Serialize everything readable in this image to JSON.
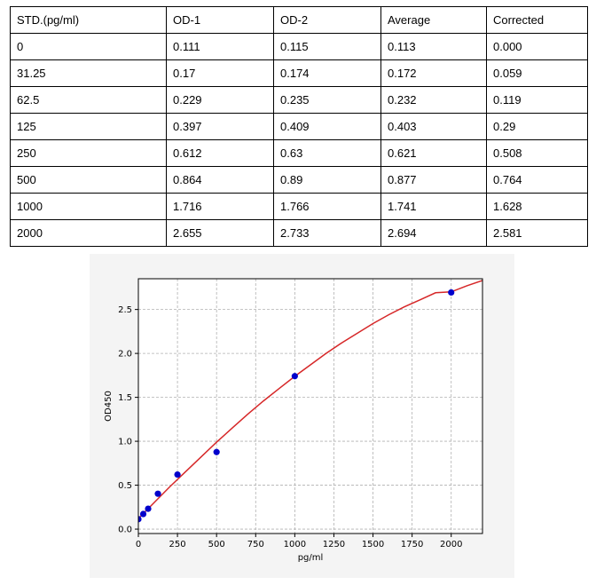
{
  "table": {
    "headers": [
      "STD.(pg/ml)",
      "OD-1",
      "OD-2",
      "Average",
      "Corrected"
    ],
    "rows": [
      [
        "0",
        "0.111",
        "0.115",
        "0.113",
        "0.000"
      ],
      [
        "31.25",
        "0.17",
        "0.174",
        "0.172",
        "0.059"
      ],
      [
        "62.5",
        "0.229",
        "0.235",
        "0.232",
        "0.119"
      ],
      [
        "125",
        "0.397",
        "0.409",
        "0.403",
        "0.29"
      ],
      [
        "250",
        "0.612",
        "0.63",
        "0.621",
        "0.508"
      ],
      [
        "500",
        "0.864",
        "0.89",
        "0.877",
        "0.764"
      ],
      [
        "1000",
        "1.716",
        "1.766",
        "1.741",
        "1.628"
      ],
      [
        "2000",
        "2.655",
        "2.733",
        "2.694",
        "2.581"
      ]
    ]
  },
  "chart_data": {
    "type": "scatter",
    "xlabel": "pg/ml",
    "ylabel": "OD450",
    "xlim": [
      0,
      2200
    ],
    "ylim": [
      -0.05,
      2.85
    ],
    "xticks": [
      0,
      250,
      500,
      750,
      1000,
      1250,
      1500,
      1750,
      2000
    ],
    "yticks": [
      0.0,
      0.5,
      1.0,
      1.5,
      2.0,
      2.5
    ],
    "grid": true,
    "points": {
      "x": [
        0,
        31.25,
        62.5,
        125,
        250,
        500,
        1000,
        2000
      ],
      "y": [
        0.113,
        0.172,
        0.232,
        0.403,
        0.621,
        0.877,
        1.741,
        2.694
      ],
      "color": "#0000cc"
    },
    "fit_curve": {
      "color": "#d62728",
      "x": [
        0,
        100,
        200,
        300,
        400,
        500,
        600,
        700,
        800,
        900,
        1000,
        1100,
        1200,
        1300,
        1400,
        1500,
        1600,
        1700,
        1800,
        1900,
        2000,
        2100,
        2200
      ],
      "y": [
        0.12,
        0.3,
        0.48,
        0.65,
        0.82,
        0.99,
        1.15,
        1.31,
        1.46,
        1.6,
        1.74,
        1.87,
        2.0,
        2.12,
        2.23,
        2.34,
        2.44,
        2.53,
        2.61,
        2.69,
        2.7,
        2.77,
        2.83
      ]
    },
    "background": "#f4f4f4"
  }
}
